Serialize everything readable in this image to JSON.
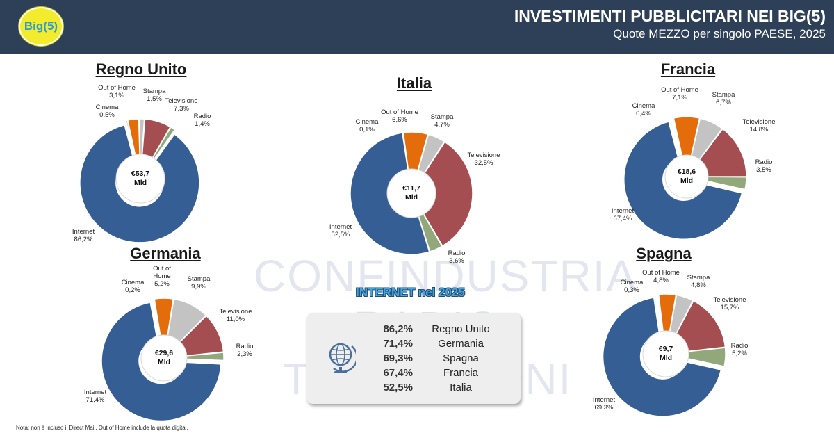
{
  "header": {
    "badge": "Big(5)",
    "title": "INVESTIMENTI PUBBLICITARI NEI BIG(5)",
    "subtitle": "Quote MEZZO per singolo PAESE, 2025"
  },
  "watermark": {
    "line1": "CONFINDUSTRIA",
    "line2": "RADIO TELEVISIONI"
  },
  "colors": {
    "header_bg": "#2e4057",
    "internet": "#355f94",
    "television": "#a44e51",
    "radio": "#92a87a",
    "stampa": "#c3c3c3",
    "out_of_home": "#e46c0a",
    "cinema": "#7a5a3a"
  },
  "chart_data": [
    {
      "type": "pie",
      "title": "Regno Unito",
      "center_line1": "€53,7",
      "center_line2": "Mld",
      "slices": [
        {
          "name": "Internet",
          "value": 86.2,
          "label": "86,2%"
        },
        {
          "name": "Cinema",
          "value": 0.5,
          "label": "0,5%"
        },
        {
          "name": "Out of Home",
          "value": 3.1,
          "label": "3,1%"
        },
        {
          "name": "Stampa",
          "value": 1.5,
          "label": "1,5%"
        },
        {
          "name": "Televisione",
          "value": 7.3,
          "label": "7,3%"
        },
        {
          "name": "Radio",
          "value": 1.4,
          "label": "1,4%"
        }
      ]
    },
    {
      "type": "pie",
      "title": "Italia",
      "center_line1": "€11,7",
      "center_line2": "Mld",
      "slices": [
        {
          "name": "Internet",
          "value": 52.5,
          "label": "52,5%"
        },
        {
          "name": "Cinema",
          "value": 0.1,
          "label": "0,1%"
        },
        {
          "name": "Out of Home",
          "value": 6.6,
          "label": "6,6%"
        },
        {
          "name": "Stampa",
          "value": 4.7,
          "label": "4,7%"
        },
        {
          "name": "Televisione",
          "value": 32.5,
          "label": "32,5%"
        },
        {
          "name": "Radio",
          "value": 3.6,
          "label": "3,6%"
        }
      ]
    },
    {
      "type": "pie",
      "title": "Francia",
      "center_line1": "€18,6",
      "center_line2": "Mld",
      "slices": [
        {
          "name": "Internet",
          "value": 67.4,
          "label": "67,4%"
        },
        {
          "name": "Cinema",
          "value": 0.4,
          "label": "0,4%"
        },
        {
          "name": "Out of Home",
          "value": 7.1,
          "label": "7,1%"
        },
        {
          "name": "Stampa",
          "value": 6.7,
          "label": "6,7%"
        },
        {
          "name": "Televisione",
          "value": 14.8,
          "label": "14,8%"
        },
        {
          "name": "Radio",
          "value": 3.5,
          "label": "3,5%"
        }
      ]
    },
    {
      "type": "pie",
      "title": "Germania",
      "center_line1": "€29,6",
      "center_line2": "Mld",
      "slices": [
        {
          "name": "Internet",
          "value": 71.4,
          "label": "71,4%"
        },
        {
          "name": "Cinema",
          "value": 0.2,
          "label": "0,2%"
        },
        {
          "name": "Out of Home",
          "value": 5.2,
          "label": "5,2%"
        },
        {
          "name": "Stampa",
          "value": 9.9,
          "label": "9,9%"
        },
        {
          "name": "Televisione",
          "value": 11.0,
          "label": "11,0%"
        },
        {
          "name": "Radio",
          "value": 2.3,
          "label": "2,3%"
        }
      ]
    },
    {
      "type": "pie",
      "title": "Spagna",
      "center_line1": "€9,7",
      "center_line2": "Mld",
      "slices": [
        {
          "name": "Internet",
          "value": 69.3,
          "label": "69,3%"
        },
        {
          "name": "Cinema",
          "value": 0.3,
          "label": "0,3%"
        },
        {
          "name": "Out of Home",
          "value": 4.8,
          "label": "4,8%"
        },
        {
          "name": "Stampa",
          "value": 4.8,
          "label": "4,8%"
        },
        {
          "name": "Televisione",
          "value": 15.7,
          "label": "15,7%"
        },
        {
          "name": "Radio",
          "value": 5.2,
          "label": "5,2%"
        }
      ]
    }
  ],
  "internet_box": {
    "title": "INTERNET nel 2025",
    "icon": "globe-icon",
    "rows": [
      {
        "pct": "86,2%",
        "country": "Regno Unito"
      },
      {
        "pct": "71,4%",
        "country": "Germania"
      },
      {
        "pct": "69,3%",
        "country": "Spagna"
      },
      {
        "pct": "67,4%",
        "country": "Francia"
      },
      {
        "pct": "52,5%",
        "country": "Italia"
      }
    ]
  },
  "note": "Nota: non è incluso il Direct Mail. Out of Home include la quota digital."
}
